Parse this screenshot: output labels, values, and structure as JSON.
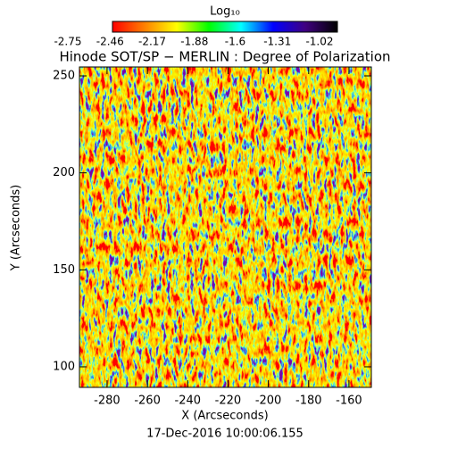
{
  "chart_data": {
    "type": "heatmap",
    "title": "Hinode SOT/SP − MERLIN : Degree of Polarization",
    "xlabel": "X (Arcseconds)",
    "ylabel": "Y (Arcseconds)",
    "date": "17-Dec-2016 10:00:06.155",
    "colorbar_label": "Log₁₀",
    "colorbar_ticks": [
      -2.75,
      -2.46,
      -2.17,
      -1.88,
      -1.6,
      -1.31,
      -1.02
    ],
    "colorbar_lim": [
      -2.75,
      -1.02
    ],
    "colormap": [
      "#ff0000",
      "#ff8000",
      "#ffff00",
      "#00ff00",
      "#00ffff",
      "#0000ff",
      "#400080",
      "#000000"
    ],
    "xlim": [
      -293.7,
      -148.9
    ],
    "xticks": [
      -280,
      -260,
      -240,
      -220,
      -200,
      -180,
      -160
    ],
    "ylim": [
      89.4,
      254.6
    ],
    "yticks": [
      100,
      150,
      200,
      250
    ]
  }
}
